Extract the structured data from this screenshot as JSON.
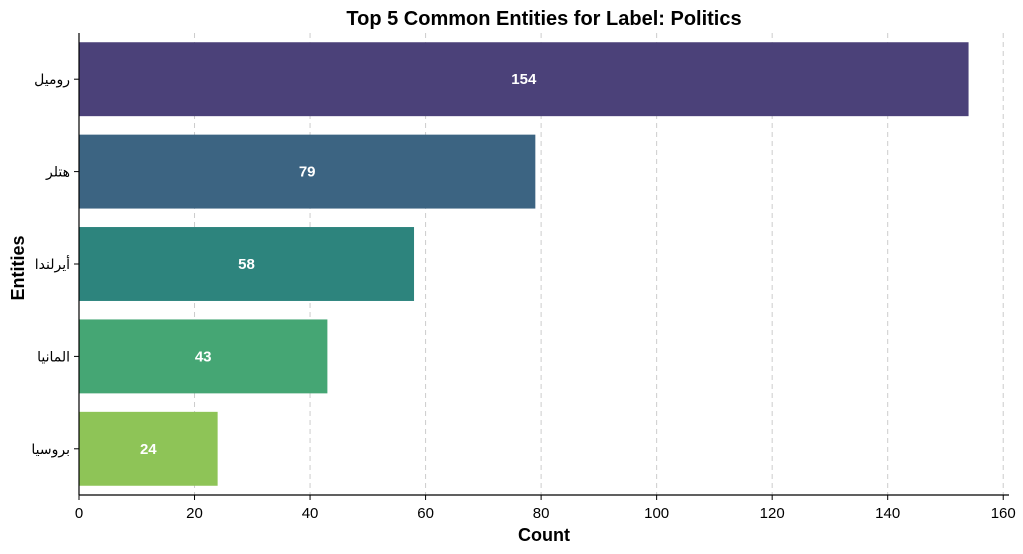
{
  "chart_data": {
    "type": "bar",
    "orientation": "horizontal",
    "title": "Top 5 Common Entities for Label: Politics",
    "xlabel": "Count",
    "ylabel": "Entities",
    "categories": [
      "روميل",
      "هتلر",
      "أيرلندا",
      "المانيا",
      "بروسيا"
    ],
    "values": [
      154,
      79,
      58,
      43,
      24
    ],
    "value_labels": [
      "154",
      "79",
      "58",
      "43",
      "24"
    ],
    "colors": [
      "#4b4179",
      "#3c6482",
      "#2d847d",
      "#45a674",
      "#8ec457"
    ],
    "xlim": [
      0,
      161
    ],
    "xticks": [
      0,
      20,
      40,
      60,
      80,
      100,
      120,
      140,
      160
    ],
    "xtick_labels": [
      "0",
      "20",
      "40",
      "60",
      "80",
      "100",
      "120",
      "140",
      "160"
    ],
    "grid": "x-dashed",
    "legend": "none"
  }
}
